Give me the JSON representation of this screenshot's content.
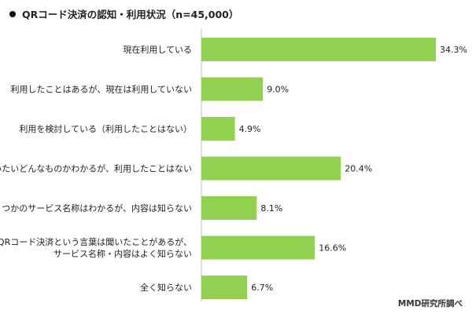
{
  "title": "QRコード決済の認知・利用状況（n=45,000）",
  "source": "MMD研究所調べ",
  "chart_data": {
    "type": "bar",
    "orientation": "horizontal",
    "categories": [
      [
        "現在利用している"
      ],
      [
        "利用したことはあるが、現在は利用していない"
      ],
      [
        "利用を検討している（利用したことはない）"
      ],
      [
        "だいたいどんなものかわかるが、利用したことはない"
      ],
      [
        "いくつかのサービス名称はわかるが、内容は知らない"
      ],
      [
        "QRコード決済という言葉は聞いたことがあるが、",
        "サービス名称・内容はよく知らない"
      ],
      [
        "全く知らない"
      ]
    ],
    "values": [
      34.3,
      9.0,
      4.9,
      20.4,
      8.1,
      16.6,
      6.7
    ],
    "value_labels": [
      "34.3%",
      "9.0%",
      "4.9%",
      "20.4%",
      "8.1%",
      "16.6%",
      "6.7%"
    ],
    "bar_color": "#92d050",
    "xlim": [
      0,
      34.3
    ],
    "grid": false
  }
}
